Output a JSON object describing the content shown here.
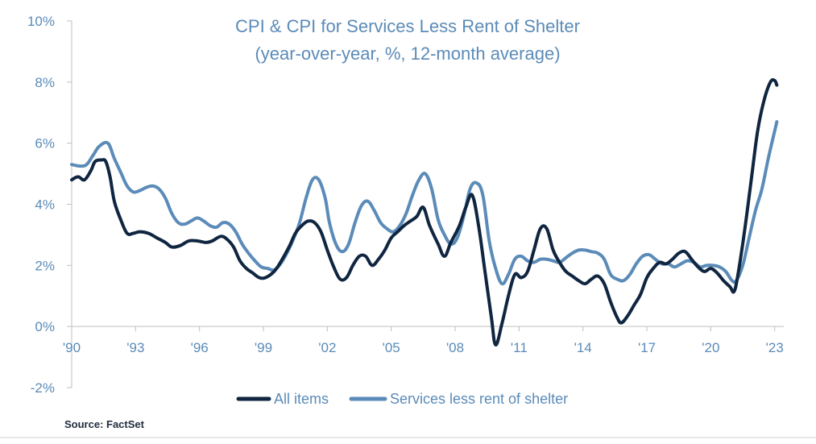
{
  "chart_data": {
    "type": "line",
    "title": "CPI & CPI for Services Less Rent of Shelter",
    "subtitle": "(year-over-year, %, 12-month average)",
    "source": "Source: FactSet",
    "ylim": [
      -2,
      10
    ],
    "y_ticks": [
      -2,
      0,
      2,
      4,
      6,
      8,
      10
    ],
    "y_tick_labels": [
      "-2%",
      "0%",
      "2%",
      "4%",
      "6%",
      "8%",
      "10%"
    ],
    "xlim": [
      1990,
      2023.2
    ],
    "x_ticks": [
      1990,
      1993,
      1996,
      1999,
      2002,
      2005,
      2008,
      2011,
      2014,
      2017,
      2020,
      2023
    ],
    "x_tick_labels": [
      "'90",
      "'93",
      "'96",
      "'99",
      "'02",
      "'05",
      "'08",
      "'11",
      "'14",
      "'17",
      "'20",
      "'23"
    ],
    "legend_position": "bottom",
    "series": [
      {
        "name": "All items",
        "color": "#0f2540",
        "points": [
          [
            1990.0,
            4.8
          ],
          [
            1990.3,
            4.9
          ],
          [
            1990.6,
            4.8
          ],
          [
            1990.9,
            5.1
          ],
          [
            1991.1,
            5.4
          ],
          [
            1991.4,
            5.45
          ],
          [
            1991.6,
            5.4
          ],
          [
            1991.8,
            4.9
          ],
          [
            1992.0,
            4.1
          ],
          [
            1992.3,
            3.5
          ],
          [
            1992.6,
            3.05
          ],
          [
            1992.9,
            3.05
          ],
          [
            1993.2,
            3.1
          ],
          [
            1993.6,
            3.05
          ],
          [
            1994.0,
            2.9
          ],
          [
            1994.4,
            2.75
          ],
          [
            1994.7,
            2.6
          ],
          [
            1995.1,
            2.65
          ],
          [
            1995.5,
            2.8
          ],
          [
            1995.9,
            2.8
          ],
          [
            1996.3,
            2.75
          ],
          [
            1996.6,
            2.8
          ],
          [
            1997.0,
            2.95
          ],
          [
            1997.3,
            2.85
          ],
          [
            1997.6,
            2.6
          ],
          [
            1997.9,
            2.15
          ],
          [
            1998.2,
            1.9
          ],
          [
            1998.5,
            1.75
          ],
          [
            1998.8,
            1.6
          ],
          [
            1999.1,
            1.6
          ],
          [
            1999.5,
            1.8
          ],
          [
            1999.8,
            2.1
          ],
          [
            2000.2,
            2.6
          ],
          [
            2000.5,
            3.05
          ],
          [
            2000.8,
            3.3
          ],
          [
            2001.1,
            3.45
          ],
          [
            2001.4,
            3.4
          ],
          [
            2001.7,
            3.1
          ],
          [
            2002.0,
            2.5
          ],
          [
            2002.3,
            1.95
          ],
          [
            2002.6,
            1.55
          ],
          [
            2002.9,
            1.6
          ],
          [
            2003.2,
            2.0
          ],
          [
            2003.5,
            2.3
          ],
          [
            2003.8,
            2.3
          ],
          [
            2004.1,
            2.0
          ],
          [
            2004.4,
            2.2
          ],
          [
            2004.7,
            2.5
          ],
          [
            2005.0,
            2.9
          ],
          [
            2005.3,
            3.1
          ],
          [
            2005.6,
            3.3
          ],
          [
            2005.9,
            3.45
          ],
          [
            2006.2,
            3.6
          ],
          [
            2006.5,
            3.9
          ],
          [
            2006.8,
            3.3
          ],
          [
            2007.2,
            2.7
          ],
          [
            2007.5,
            2.3
          ],
          [
            2007.8,
            2.75
          ],
          [
            2008.2,
            3.3
          ],
          [
            2008.5,
            3.9
          ],
          [
            2008.8,
            4.3
          ],
          [
            2009.1,
            3.3
          ],
          [
            2009.4,
            1.8
          ],
          [
            2009.7,
            0.3
          ],
          [
            2009.9,
            -0.6
          ],
          [
            2010.2,
            0.1
          ],
          [
            2010.5,
            1.0
          ],
          [
            2010.8,
            1.7
          ],
          [
            2011.1,
            1.6
          ],
          [
            2011.4,
            1.8
          ],
          [
            2011.7,
            2.5
          ],
          [
            2012.0,
            3.2
          ],
          [
            2012.3,
            3.2
          ],
          [
            2012.6,
            2.5
          ],
          [
            2012.9,
            2.1
          ],
          [
            2013.2,
            1.8
          ],
          [
            2013.5,
            1.65
          ],
          [
            2013.8,
            1.5
          ],
          [
            2014.1,
            1.4
          ],
          [
            2014.4,
            1.55
          ],
          [
            2014.7,
            1.65
          ],
          [
            2015.0,
            1.4
          ],
          [
            2015.3,
            0.8
          ],
          [
            2015.6,
            0.3
          ],
          [
            2015.8,
            0.12
          ],
          [
            2016.1,
            0.35
          ],
          [
            2016.4,
            0.7
          ],
          [
            2016.7,
            1.05
          ],
          [
            2017.0,
            1.6
          ],
          [
            2017.3,
            1.9
          ],
          [
            2017.6,
            2.1
          ],
          [
            2017.9,
            2.05
          ],
          [
            2018.2,
            2.2
          ],
          [
            2018.5,
            2.4
          ],
          [
            2018.8,
            2.45
          ],
          [
            2019.1,
            2.2
          ],
          [
            2019.4,
            1.95
          ],
          [
            2019.7,
            1.8
          ],
          [
            2020.0,
            1.9
          ],
          [
            2020.3,
            1.75
          ],
          [
            2020.6,
            1.5
          ],
          [
            2020.9,
            1.3
          ],
          [
            2021.1,
            1.15
          ],
          [
            2021.3,
            1.8
          ],
          [
            2021.6,
            3.2
          ],
          [
            2021.9,
            4.8
          ],
          [
            2022.2,
            6.4
          ],
          [
            2022.5,
            7.4
          ],
          [
            2022.8,
            8.0
          ],
          [
            2023.0,
            8.05
          ],
          [
            2023.1,
            7.9
          ]
        ]
      },
      {
        "name": "Services less rent of shelter",
        "color": "#5b8bb8",
        "points": [
          [
            1990.0,
            5.3
          ],
          [
            1990.4,
            5.25
          ],
          [
            1990.7,
            5.3
          ],
          [
            1991.0,
            5.6
          ],
          [
            1991.3,
            5.9
          ],
          [
            1991.7,
            6.0
          ],
          [
            1992.0,
            5.5
          ],
          [
            1992.3,
            5.05
          ],
          [
            1992.6,
            4.6
          ],
          [
            1992.9,
            4.4
          ],
          [
            1993.2,
            4.45
          ],
          [
            1993.5,
            4.55
          ],
          [
            1993.8,
            4.6
          ],
          [
            1994.1,
            4.5
          ],
          [
            1994.4,
            4.2
          ],
          [
            1994.7,
            3.7
          ],
          [
            1995.0,
            3.4
          ],
          [
            1995.3,
            3.35
          ],
          [
            1995.6,
            3.45
          ],
          [
            1995.9,
            3.55
          ],
          [
            1996.2,
            3.45
          ],
          [
            1996.5,
            3.3
          ],
          [
            1996.8,
            3.25
          ],
          [
            1997.1,
            3.4
          ],
          [
            1997.4,
            3.35
          ],
          [
            1997.7,
            3.1
          ],
          [
            1998.0,
            2.7
          ],
          [
            1998.3,
            2.4
          ],
          [
            1998.6,
            2.15
          ],
          [
            1998.9,
            1.95
          ],
          [
            1999.2,
            1.9
          ],
          [
            1999.5,
            1.85
          ],
          [
            1999.8,
            2.05
          ],
          [
            2000.1,
            2.4
          ],
          [
            2000.4,
            2.85
          ],
          [
            2000.7,
            3.4
          ],
          [
            2001.0,
            4.2
          ],
          [
            2001.3,
            4.8
          ],
          [
            2001.6,
            4.8
          ],
          [
            2001.9,
            4.2
          ],
          [
            2002.1,
            3.4
          ],
          [
            2002.4,
            2.7
          ],
          [
            2002.7,
            2.45
          ],
          [
            2003.0,
            2.7
          ],
          [
            2003.3,
            3.4
          ],
          [
            2003.6,
            3.95
          ],
          [
            2003.9,
            4.1
          ],
          [
            2004.2,
            3.8
          ],
          [
            2004.5,
            3.4
          ],
          [
            2004.8,
            3.2
          ],
          [
            2005.1,
            3.1
          ],
          [
            2005.4,
            3.3
          ],
          [
            2005.7,
            3.7
          ],
          [
            2006.0,
            4.3
          ],
          [
            2006.3,
            4.8
          ],
          [
            2006.6,
            5.0
          ],
          [
            2006.9,
            4.5
          ],
          [
            2007.2,
            3.5
          ],
          [
            2007.5,
            3.0
          ],
          [
            2007.8,
            2.7
          ],
          [
            2008.1,
            2.9
          ],
          [
            2008.4,
            3.6
          ],
          [
            2008.7,
            4.5
          ],
          [
            2009.0,
            4.7
          ],
          [
            2009.3,
            4.3
          ],
          [
            2009.6,
            2.8
          ],
          [
            2009.9,
            1.9
          ],
          [
            2010.2,
            1.4
          ],
          [
            2010.5,
            1.7
          ],
          [
            2010.8,
            2.2
          ],
          [
            2011.1,
            2.3
          ],
          [
            2011.4,
            2.15
          ],
          [
            2011.7,
            2.1
          ],
          [
            2012.0,
            2.2
          ],
          [
            2012.3,
            2.2
          ],
          [
            2012.6,
            2.15
          ],
          [
            2012.9,
            2.1
          ],
          [
            2013.2,
            2.25
          ],
          [
            2013.5,
            2.4
          ],
          [
            2013.8,
            2.5
          ],
          [
            2014.1,
            2.5
          ],
          [
            2014.4,
            2.45
          ],
          [
            2014.7,
            2.4
          ],
          [
            2015.0,
            2.2
          ],
          [
            2015.3,
            1.7
          ],
          [
            2015.6,
            1.55
          ],
          [
            2015.9,
            1.5
          ],
          [
            2016.2,
            1.7
          ],
          [
            2016.5,
            2.05
          ],
          [
            2016.8,
            2.3
          ],
          [
            2017.1,
            2.35
          ],
          [
            2017.4,
            2.2
          ],
          [
            2017.7,
            2.05
          ],
          [
            2018.0,
            2.05
          ],
          [
            2018.3,
            1.95
          ],
          [
            2018.6,
            2.05
          ],
          [
            2018.9,
            2.15
          ],
          [
            2019.2,
            2.1
          ],
          [
            2019.5,
            1.95
          ],
          [
            2019.8,
            2.0
          ],
          [
            2020.1,
            2.0
          ],
          [
            2020.4,
            1.95
          ],
          [
            2020.7,
            1.8
          ],
          [
            2021.0,
            1.5
          ],
          [
            2021.2,
            1.5
          ],
          [
            2021.5,
            2.0
          ],
          [
            2021.8,
            2.9
          ],
          [
            2022.1,
            3.8
          ],
          [
            2022.4,
            4.5
          ],
          [
            2022.7,
            5.5
          ],
          [
            2023.0,
            6.4
          ],
          [
            2023.1,
            6.7
          ]
        ]
      }
    ]
  }
}
